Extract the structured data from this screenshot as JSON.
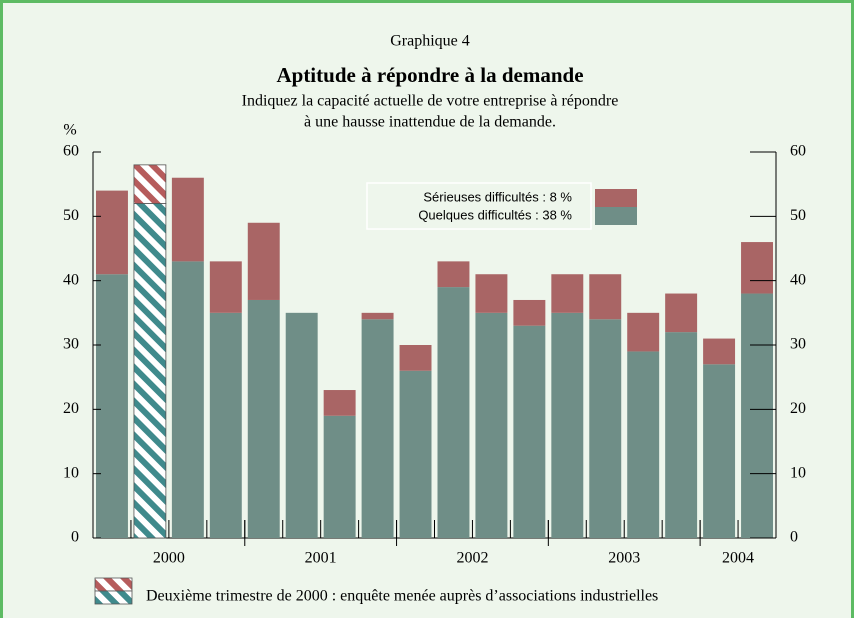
{
  "chart_data": {
    "type": "stacked_bar",
    "chart_label": "Graphique 4",
    "title": "Aptitude à répondre à la demande",
    "subtitle": [
      "Indiquez la capacité actuelle de votre entreprise à répondre",
      "à une hausse inattendue de la demande."
    ],
    "y_label": "%",
    "categories": [
      null,
      null,
      null,
      null,
      null,
      null,
      null,
      null,
      null,
      null,
      null,
      null,
      null,
      null,
      null,
      null,
      null,
      null
    ],
    "groups": [
      {
        "label": "2000",
        "count": 4
      },
      {
        "label": "2001",
        "count": 4
      },
      {
        "label": "2002",
        "count": 4
      },
      {
        "label": "2003",
        "count": 4
      },
      {
        "label": "2004",
        "count": 2
      }
    ],
    "series": [
      {
        "name": "Quelques difficultés : 38 %",
        "color": "#6f8e87",
        "hatch_color": "#3f8a8c",
        "values": [
          41,
          52,
          43,
          35,
          37,
          35,
          19,
          34,
          26,
          39,
          35,
          33,
          35,
          34,
          29,
          32,
          27,
          38
        ]
      },
      {
        "name": "Sérieuses difficultés :  8 %",
        "color": "#a96565",
        "hatch_color": "#b65c5c",
        "values": [
          13,
          6,
          13,
          8,
          12,
          0,
          4,
          1,
          4,
          4,
          6,
          4,
          6,
          7,
          6,
          6,
          4,
          8
        ]
      }
    ],
    "hatched_index": 1,
    "note": "Deuxième trimestre de 2000 : enquête menée auprès d’associations industrielles",
    "ylim": [
      0,
      60
    ],
    "yticks": [
      0,
      10,
      20,
      30,
      40,
      50,
      60
    ],
    "y2lim": [
      0,
      60
    ],
    "y2ticks": [
      0,
      10,
      20,
      30,
      40,
      50,
      60
    ]
  }
}
